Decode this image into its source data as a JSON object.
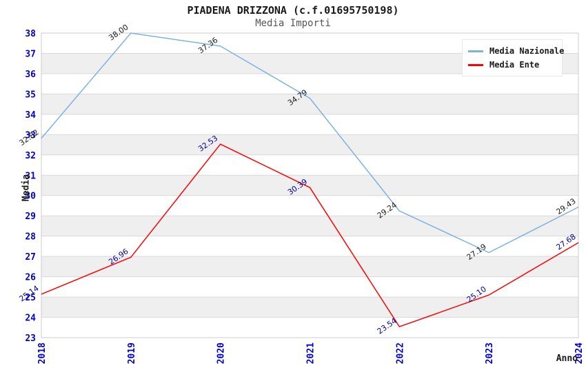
{
  "header": {
    "title": "PIADENA DRIZZONA (c.f.01695750198)",
    "subtitle": "Media Importi"
  },
  "chart_data": {
    "type": "line",
    "title": "PIADENA DRIZZONA (c.f.01695750198)",
    "subtitle": "Media Importi",
    "xlabel": "Anno",
    "ylabel": "Media",
    "x": [
      2018,
      2019,
      2020,
      2021,
      2022,
      2023,
      2024
    ],
    "series": [
      {
        "name": "Media Nazionale",
        "color": "#7cb2e2",
        "values": [
          32.82,
          38.0,
          37.36,
          34.79,
          29.24,
          27.19,
          29.43
        ],
        "point_labels": [
          "32.82",
          "38.00",
          "37.36",
          "34.79",
          "29.24",
          "27.19",
          "29.43"
        ],
        "label_color": "#1a1a1a"
      },
      {
        "name": "Media Ente",
        "color": "#ff0000",
        "values": [
          25.14,
          26.96,
          32.53,
          30.39,
          23.54,
          25.1,
          27.68
        ],
        "point_labels": [
          "25.14",
          "26.96",
          "32.53",
          "30.39",
          "23.54",
          "25.10",
          "27.68"
        ],
        "label_color": "#000099"
      }
    ],
    "ylim": [
      23,
      38
    ],
    "yticks": [
      23,
      24,
      25,
      26,
      27,
      28,
      29,
      30,
      31,
      32,
      33,
      34,
      35,
      36,
      37,
      38
    ],
    "grid": true,
    "legend_position": "top-right",
    "colors": {
      "tick_label": "#0000cc",
      "gridline": "#d9d9d9",
      "plot_border": "#cccccc",
      "band_light": "#ffffff",
      "band_dark": "#efefef"
    }
  }
}
